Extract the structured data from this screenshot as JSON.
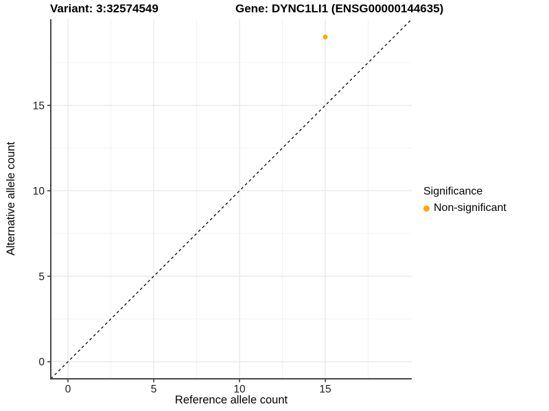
{
  "titles": {
    "variant": "Variant: 3:32574549",
    "gene": "Gene: DYNC1LI1 (ENSG00000144635)"
  },
  "axes": {
    "x": {
      "label": "Reference allele count",
      "tick_labels": [
        "0",
        "5",
        "10",
        "15"
      ]
    },
    "y": {
      "label": "Alternative allele count",
      "tick_labels": [
        "0",
        "5",
        "10",
        "15"
      ]
    }
  },
  "legend": {
    "title": "Significance",
    "items": [
      {
        "label": "Non-significant",
        "color": "#FFA500"
      }
    ]
  },
  "chart_data": {
    "type": "scatter",
    "title": "Variant: 3:32574549 / Gene: DYNC1LI1 (ENSG00000144635)",
    "xlabel": "Reference allele count",
    "ylabel": "Alternative allele count",
    "xlim": [
      -1,
      20.04
    ],
    "ylim": [
      -1,
      20.04
    ],
    "x_breaks_major": [
      0,
      5,
      10,
      15
    ],
    "x_breaks_minor": [
      2.5,
      7.5,
      12.5,
      17.5
    ],
    "y_breaks_major": [
      0,
      5,
      10,
      15
    ],
    "y_breaks_minor": [
      2.5,
      7.5,
      12.5,
      17.5
    ],
    "grid": true,
    "legend_position": "right",
    "reference_line": {
      "kind": "identity",
      "style": "dashed",
      "color": "#000000"
    },
    "series": [
      {
        "name": "Non-significant",
        "color": "#FFA500",
        "points": [
          {
            "x": 15,
            "y": 19
          }
        ]
      }
    ]
  },
  "colors": {
    "background": "#ffffff",
    "grid_major": "#e6e6e6",
    "grid_minor": "#f2f2f2",
    "axis_line": "#464646",
    "tick_mark": "#333333",
    "tick_label": "#1a1a1a",
    "point_orange": "#FFA500"
  }
}
